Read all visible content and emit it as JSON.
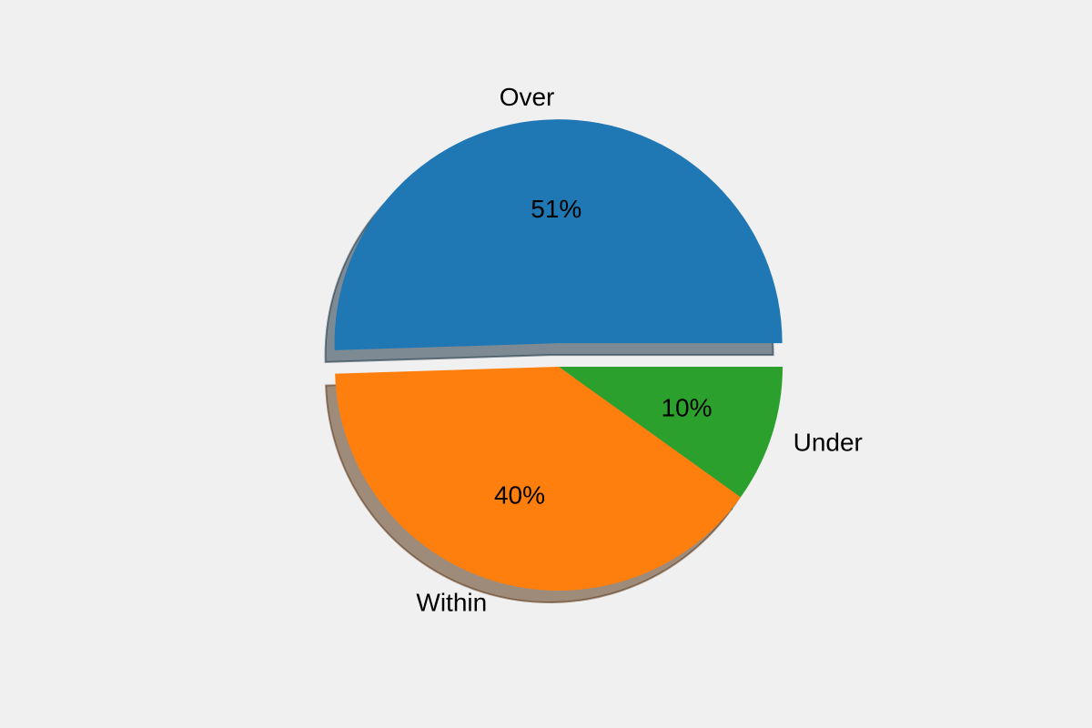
{
  "chart_data": {
    "type": "pie",
    "labels": [
      "Over",
      "Within",
      "Under"
    ],
    "values": [
      51,
      40,
      10
    ],
    "percent_labels": [
      "51%",
      "40%",
      "10%"
    ],
    "colors": [
      "#1f77b4",
      "#ff7f0e",
      "#2ca02c"
    ],
    "explode": [
      0.105,
      0,
      0
    ],
    "startangle": 0,
    "counterclock": true,
    "shadow": true,
    "label_distance": 1.1,
    "pct_distance": 0.6,
    "label_color": "#000000",
    "pct_color": "#000000",
    "background": "#f0f0f0",
    "legend": "none",
    "title": ""
  }
}
